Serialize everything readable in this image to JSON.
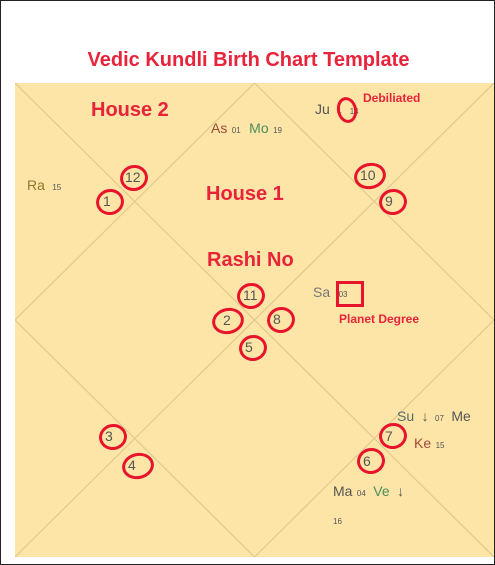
{
  "title": "Vedic Kundli Birth Chart Template",
  "labels": {
    "house2": "House 2",
    "house1": "House 1",
    "rashi_no": "Rashi No",
    "debiliated": "Debiliated",
    "planet_degree": "Planet Degree"
  },
  "colors": {
    "chart_bg": "#fce5a7",
    "line": "#e2c98d",
    "annotation": "#e8233a",
    "circle": "#e8142c"
  },
  "rashi_numbers": [
    "1",
    "2",
    "3",
    "4",
    "5",
    "6",
    "7",
    "8",
    "9",
    "10",
    "11",
    "12"
  ],
  "planets": [
    {
      "name": "As",
      "degree": "01",
      "color": "#a04a3a"
    },
    {
      "name": "Mo",
      "degree": "19",
      "color": "#4e8b5a"
    },
    {
      "name": "Ju",
      "status": "↓",
      "degree": "14",
      "color": "#555555"
    },
    {
      "name": "Ra",
      "degree": "15",
      "color": "#8a7a2a"
    },
    {
      "name": "Sa",
      "degree": "03",
      "color": "#777777"
    },
    {
      "name": "Su",
      "status": "↓",
      "degree": "07",
      "color": "#556b6b"
    },
    {
      "name": "Me",
      "color": "#555555"
    },
    {
      "name": "Ke",
      "degree": "15",
      "color": "#a04a3a"
    },
    {
      "name": "Ma",
      "degree": "04",
      "color": "#555555"
    },
    {
      "name": "Ve",
      "status": "↓",
      "degree": "16",
      "color": "#4e8b5a"
    }
  ]
}
